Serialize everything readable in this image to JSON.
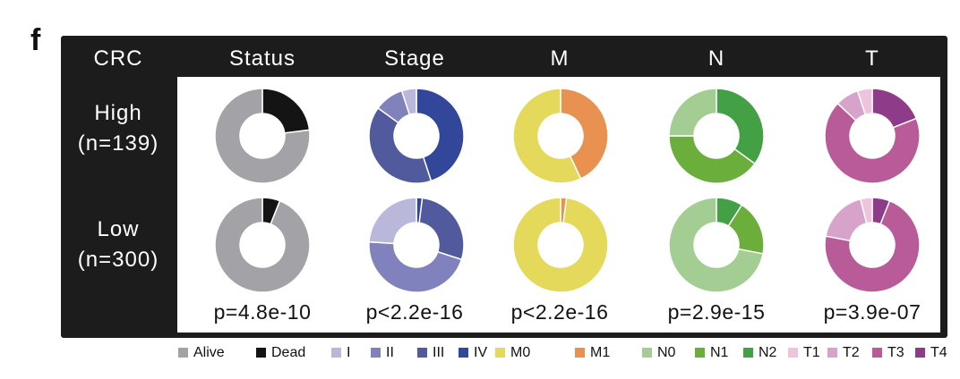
{
  "panel_letter": "f",
  "colors": {
    "frame": "#1c1c1c",
    "Alive": "#a3a3a7",
    "Dead": "#141414",
    "I": "#b9b8da",
    "II": "#8181bd",
    "III": "#525a9e",
    "IV": "#33479a",
    "M0": "#e4d95a",
    "M1": "#e99150",
    "N0": "#a3cd92",
    "N1": "#6cae3c",
    "N2": "#44a044",
    "T1": "#edc4dc",
    "T2": "#d7a3ca",
    "T3": "#b85b98",
    "T4": "#8e3c8a"
  },
  "chart_data": {
    "type": "pie",
    "variant": "donut",
    "corner_label": "CRC",
    "columns": [
      "Status",
      "Stage",
      "M",
      "N",
      "T"
    ],
    "rows": [
      {
        "label": "High",
        "n_label": "(n=139)"
      },
      {
        "label": "Low",
        "n_label": "(n=300)"
      }
    ],
    "pies": [
      {
        "row": "High",
        "column": "Status",
        "slices": [
          {
            "name": "Dead",
            "value": 0.23
          },
          {
            "name": "Alive",
            "value": 0.77
          }
        ]
      },
      {
        "row": "High",
        "column": "Stage",
        "slices": [
          {
            "name": "IV",
            "value": 0.45
          },
          {
            "name": "III",
            "value": 0.4
          },
          {
            "name": "II",
            "value": 0.1
          },
          {
            "name": "I",
            "value": 0.05
          }
        ]
      },
      {
        "row": "High",
        "column": "M",
        "slices": [
          {
            "name": "M1",
            "value": 0.43
          },
          {
            "name": "M0",
            "value": 0.57
          }
        ]
      },
      {
        "row": "High",
        "column": "N",
        "slices": [
          {
            "name": "N2",
            "value": 0.35
          },
          {
            "name": "N1",
            "value": 0.4
          },
          {
            "name": "N0",
            "value": 0.25
          }
        ]
      },
      {
        "row": "High",
        "column": "T",
        "slices": [
          {
            "name": "T4",
            "value": 0.19
          },
          {
            "name": "T3",
            "value": 0.68
          },
          {
            "name": "T2",
            "value": 0.08
          },
          {
            "name": "T1",
            "value": 0.05
          }
        ]
      },
      {
        "row": "Low",
        "column": "Status",
        "slices": [
          {
            "name": "Dead",
            "value": 0.06
          },
          {
            "name": "Alive",
            "value": 0.94
          }
        ]
      },
      {
        "row": "Low",
        "column": "Stage",
        "slices": [
          {
            "name": "IV",
            "value": 0.02
          },
          {
            "name": "III",
            "value": 0.28
          },
          {
            "name": "II",
            "value": 0.46
          },
          {
            "name": "I",
            "value": 0.24
          }
        ]
      },
      {
        "row": "Low",
        "column": "M",
        "slices": [
          {
            "name": "M1",
            "value": 0.02
          },
          {
            "name": "M0",
            "value": 0.98
          }
        ]
      },
      {
        "row": "Low",
        "column": "N",
        "slices": [
          {
            "name": "N2",
            "value": 0.09
          },
          {
            "name": "N1",
            "value": 0.19
          },
          {
            "name": "N0",
            "value": 0.72
          }
        ]
      },
      {
        "row": "Low",
        "column": "T",
        "slices": [
          {
            "name": "T4",
            "value": 0.06
          },
          {
            "name": "T3",
            "value": 0.72
          },
          {
            "name": "T2",
            "value": 0.18
          },
          {
            "name": "T1",
            "value": 0.04
          }
        ]
      }
    ],
    "p_values": [
      "p=4.8e-10",
      "p<2.2e-16",
      "p<2.2e-16",
      "p=2.9e-15",
      "p=3.9e-07"
    ],
    "legend": [
      "Alive",
      "Dead",
      "I",
      "II",
      "III",
      "IV",
      "M0",
      "M1",
      "N0",
      "N1",
      "N2",
      "T1",
      "T2",
      "T3",
      "T4"
    ]
  }
}
